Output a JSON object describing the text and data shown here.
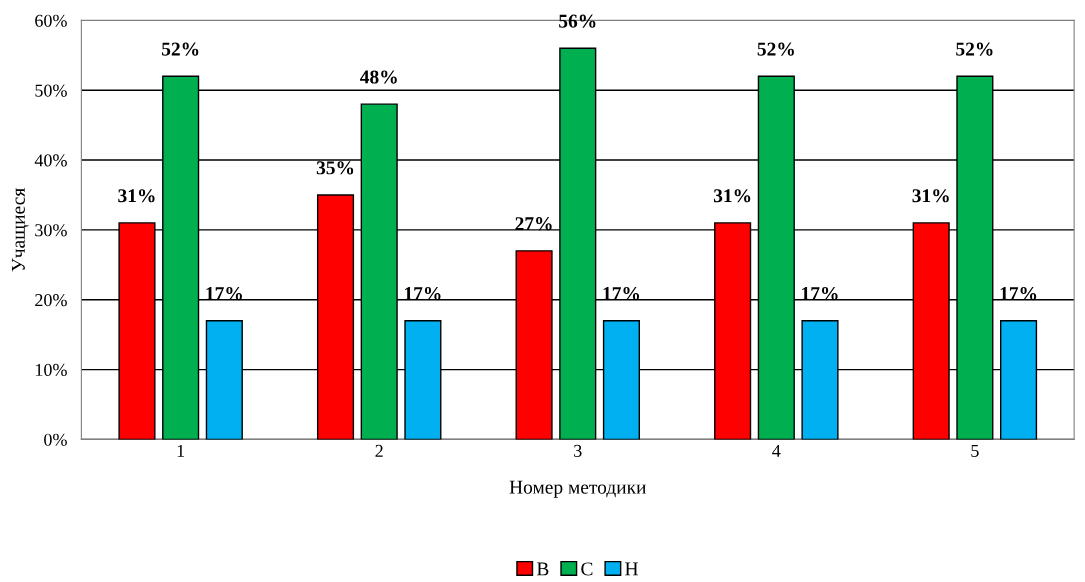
{
  "chart_data": {
    "type": "bar",
    "xlabel": "Номер методики",
    "ylabel": "Учащиеся",
    "categories": [
      "1",
      "2",
      "3",
      "4",
      "5"
    ],
    "series": [
      {
        "name": "В",
        "color": "#ff0000",
        "values": [
          31,
          35,
          27,
          31,
          31
        ],
        "value_labels": [
          "31%",
          "35%",
          "27%",
          "31%",
          "31%"
        ]
      },
      {
        "name": "С",
        "color": "#00b050",
        "values": [
          52,
          48,
          56,
          52,
          52
        ],
        "value_labels": [
          "52%",
          "48%",
          "56%",
          "52%",
          "52%"
        ]
      },
      {
        "name": "Н",
        "color": "#00b0f0",
        "values": [
          17,
          17,
          17,
          17,
          17
        ],
        "value_labels": [
          "17%",
          "17%",
          "17%",
          "17%",
          "17%"
        ]
      }
    ],
    "ylim": [
      0,
      60
    ],
    "yticks": [
      {
        "value": 0,
        "label": "0%"
      },
      {
        "value": 10,
        "label": "10%"
      },
      {
        "value": 20,
        "label": "20%"
      },
      {
        "value": 30,
        "label": "30%"
      },
      {
        "value": 40,
        "label": "40%"
      },
      {
        "value": 50,
        "label": "50%"
      },
      {
        "value": 60,
        "label": "60%"
      }
    ],
    "grid": "y",
    "legend": "bottom"
  }
}
